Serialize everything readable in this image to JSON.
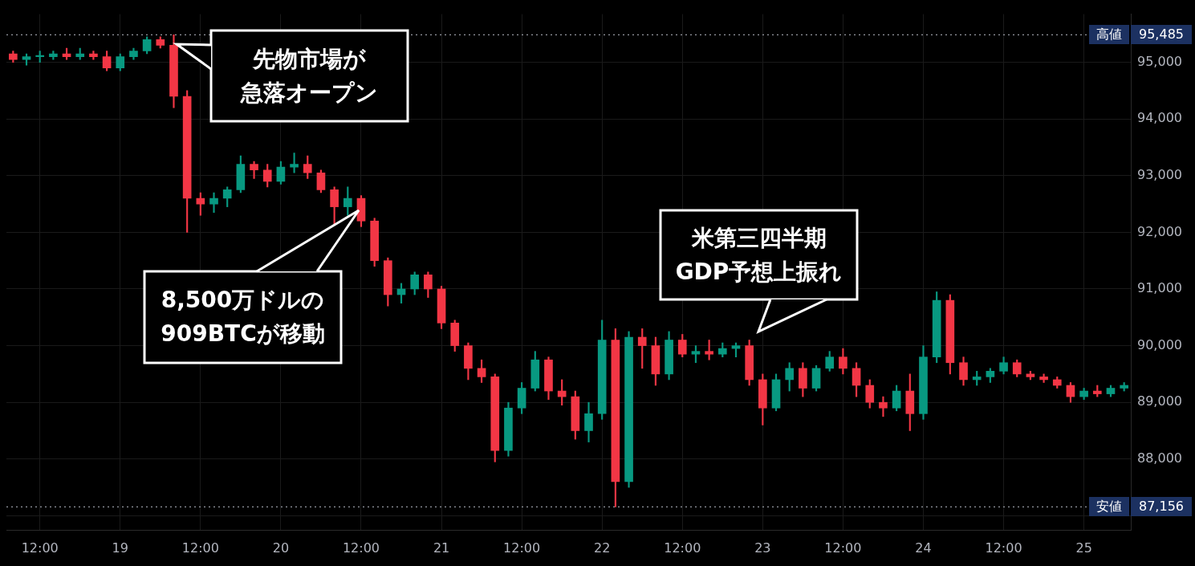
{
  "chart_data": {
    "type": "candlestick",
    "categories": [
      null,
      null,
      "12:00",
      null,
      null,
      null,
      null,
      null,
      "19",
      null,
      null,
      null,
      null,
      null,
      "12:00",
      null,
      null,
      null,
      null,
      null,
      "20",
      null,
      null,
      null,
      null,
      null,
      "12:00",
      null,
      null,
      null,
      null,
      null,
      "21",
      null,
      null,
      null,
      null,
      null,
      "12:00",
      null,
      null,
      null,
      null,
      null,
      "22",
      null,
      null,
      null,
      null,
      null,
      "12:00",
      null,
      null,
      null,
      null,
      null,
      "23",
      null,
      null,
      null,
      null,
      null,
      "12:00",
      null,
      null,
      null,
      null,
      null,
      "24",
      null,
      null,
      null,
      null,
      null,
      "12:00",
      null,
      null,
      null,
      null,
      null,
      "25",
      null,
      null,
      null
    ],
    "ohlc": [
      [
        95150,
        95200,
        95000,
        95050
      ],
      [
        95050,
        95150,
        94950,
        95100
      ],
      [
        95100,
        95200,
        95000,
        95100
      ],
      [
        95100,
        95200,
        95050,
        95150
      ],
      [
        95150,
        95250,
        95050,
        95100
      ],
      [
        95100,
        95250,
        95050,
        95150
      ],
      [
        95150,
        95200,
        95050,
        95100
      ],
      [
        95100,
        95200,
        94850,
        94900
      ],
      [
        94900,
        95150,
        94850,
        95100
      ],
      [
        95100,
        95250,
        95050,
        95200
      ],
      [
        95200,
        95450,
        95150,
        95400
      ],
      [
        95400,
        95450,
        95250,
        95300
      ],
      [
        95300,
        95485,
        94200,
        94400
      ],
      [
        94400,
        94500,
        92000,
        92600
      ],
      [
        92600,
        92700,
        92300,
        92500
      ],
      [
        92500,
        92700,
        92350,
        92600
      ],
      [
        92600,
        92800,
        92450,
        92750
      ],
      [
        92750,
        93350,
        92700,
        93200
      ],
      [
        93200,
        93250,
        92950,
        93100
      ],
      [
        93100,
        93200,
        92800,
        92900
      ],
      [
        92900,
        93250,
        92850,
        93150
      ],
      [
        93150,
        93400,
        93050,
        93200
      ],
      [
        93200,
        93350,
        92950,
        93050
      ],
      [
        93050,
        93100,
        92700,
        92750
      ],
      [
        92750,
        92800,
        92150,
        92450
      ],
      [
        92450,
        92800,
        92300,
        92600
      ],
      [
        92600,
        92650,
        92100,
        92200
      ],
      [
        92200,
        92250,
        91400,
        91500
      ],
      [
        91500,
        91550,
        90700,
        90900
      ],
      [
        90900,
        91100,
        90750,
        91000
      ],
      [
        91000,
        91300,
        90900,
        91250
      ],
      [
        91250,
        91300,
        90850,
        91000
      ],
      [
        91000,
        91050,
        90300,
        90400
      ],
      [
        90400,
        90450,
        89900,
        90000
      ],
      [
        90000,
        90050,
        89400,
        89600
      ],
      [
        89600,
        89750,
        89350,
        89450
      ],
      [
        89450,
        89500,
        87950,
        88150
      ],
      [
        88150,
        89000,
        88050,
        88900
      ],
      [
        88900,
        89350,
        88800,
        89250
      ],
      [
        89250,
        89900,
        89200,
        89750
      ],
      [
        89750,
        89800,
        89050,
        89200
      ],
      [
        89200,
        89400,
        88950,
        89100
      ],
      [
        89100,
        89200,
        88350,
        88500
      ],
      [
        88500,
        89000,
        88300,
        88800
      ],
      [
        88800,
        90450,
        88700,
        90100
      ],
      [
        90100,
        90300,
        87156,
        87600
      ],
      [
        87600,
        90250,
        87500,
        90150
      ],
      [
        90150,
        90300,
        89600,
        90000
      ],
      [
        90000,
        90150,
        89300,
        89500
      ],
      [
        89500,
        90250,
        89400,
        90100
      ],
      [
        90100,
        90200,
        89800,
        89850
      ],
      [
        89850,
        90000,
        89700,
        89900
      ],
      [
        89900,
        90100,
        89750,
        89850
      ],
      [
        89850,
        90050,
        89800,
        89950
      ],
      [
        89950,
        90050,
        89800,
        90000
      ],
      [
        90000,
        90100,
        89300,
        89400
      ],
      [
        89400,
        89500,
        88600,
        88900
      ],
      [
        88900,
        89500,
        88850,
        89400
      ],
      [
        89400,
        89700,
        89200,
        89600
      ],
      [
        89600,
        89700,
        89100,
        89250
      ],
      [
        89250,
        89650,
        89200,
        89600
      ],
      [
        89600,
        89900,
        89550,
        89800
      ],
      [
        89800,
        89950,
        89500,
        89600
      ],
      [
        89600,
        89700,
        89100,
        89300
      ],
      [
        89300,
        89400,
        88900,
        89000
      ],
      [
        89000,
        89100,
        88750,
        88900
      ],
      [
        88900,
        89300,
        88850,
        89200
      ],
      [
        89200,
        89500,
        88500,
        88800
      ],
      [
        88800,
        90000,
        88700,
        89800
      ],
      [
        89800,
        90950,
        89700,
        90800
      ],
      [
        90800,
        90900,
        89500,
        89700
      ],
      [
        89700,
        89800,
        89300,
        89400
      ],
      [
        89400,
        89550,
        89300,
        89450
      ],
      [
        89450,
        89600,
        89350,
        89550
      ],
      [
        89550,
        89800,
        89500,
        89700
      ],
      [
        89700,
        89750,
        89450,
        89500
      ],
      [
        89500,
        89550,
        89400,
        89450
      ],
      [
        89450,
        89500,
        89350,
        89400
      ],
      [
        89400,
        89450,
        89250,
        89300
      ],
      [
        89300,
        89350,
        89000,
        89100
      ],
      [
        89100,
        89250,
        89050,
        89200
      ],
      [
        89200,
        89300,
        89100,
        89150
      ],
      [
        89150,
        89300,
        89100,
        89250
      ],
      [
        89250,
        89350,
        89200,
        89300
      ]
    ],
    "ylim": [
      86750,
      95850
    ],
    "yticks": [
      {
        "value": 87000,
        "label": null
      },
      {
        "value": 88000,
        "label": "88,000"
      },
      {
        "value": 89000,
        "label": "89,000"
      },
      {
        "value": 90000,
        "label": "90,000"
      },
      {
        "value": 91000,
        "label": "91,000"
      },
      {
        "value": 92000,
        "label": "92,000"
      },
      {
        "value": 93000,
        "label": "93,000"
      },
      {
        "value": 94000,
        "label": "94,000"
      },
      {
        "value": 95000,
        "label": "95,000"
      }
    ],
    "grid": true,
    "legend": false,
    "ref_lines": [
      {
        "axis": "y",
        "value": 95485,
        "label": "高値",
        "line_style": "dotted"
      },
      {
        "axis": "y",
        "value": 87156,
        "label": "安値",
        "line_style": "dotted"
      }
    ],
    "annotations": [
      "先物市場が",
      "急落オープン",
      "8,500万ドルの",
      "909BTCが移動",
      "米第三四半期",
      "GDP予想上振れ",
      "95,485",
      "87,156"
    ]
  }
}
